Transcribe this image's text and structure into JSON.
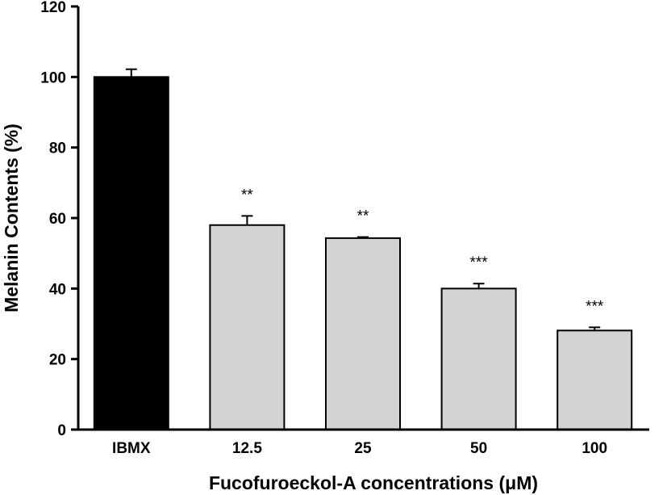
{
  "chart_data": {
    "type": "bar",
    "title": "",
    "xlabel": "Fucofuroeckol-A concentrations (μM)",
    "ylabel": "Melanin Contents (%)",
    "ylim": [
      0,
      120
    ],
    "yticks": [
      0,
      20,
      40,
      60,
      80,
      100,
      120
    ],
    "categories": [
      "IBMX",
      "12.5",
      "25",
      "50",
      "100"
    ],
    "values": [
      100,
      58,
      54.3,
      40,
      28.1
    ],
    "errors": [
      2.2,
      2.6,
      0.3,
      1.4,
      0.9
    ],
    "significance": [
      "",
      "**",
      "**",
      "***",
      "***"
    ],
    "bar_colors": [
      "#000000",
      "#d3d3d3",
      "#d3d3d3",
      "#d3d3d3",
      "#d3d3d3"
    ],
    "grid": false,
    "legend": "none"
  }
}
